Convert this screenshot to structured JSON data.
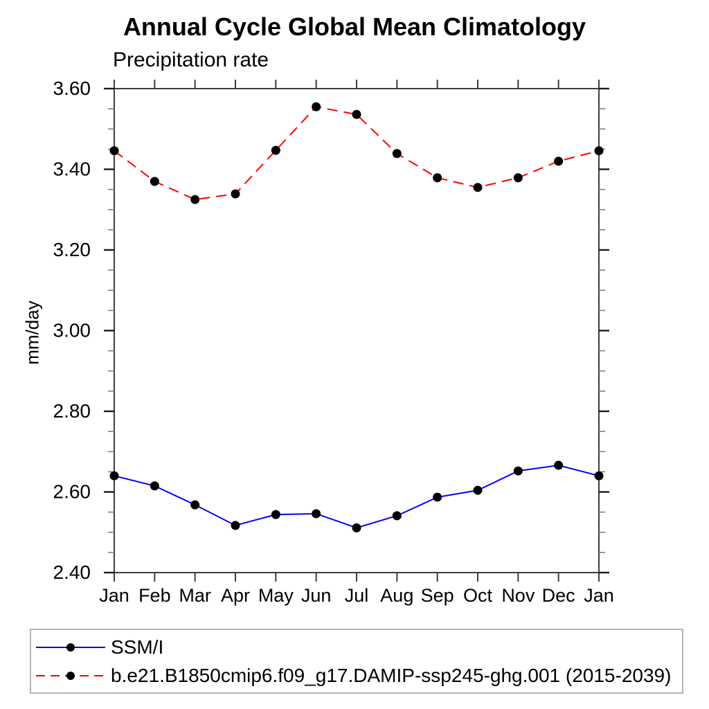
{
  "title": "Annual Cycle Global Mean Climatology",
  "subtitle": "Precipitation rate",
  "ylabel": "mm/day",
  "chart_data": {
    "type": "line",
    "title": "Annual Cycle Global Mean Climatology",
    "subtitle": "Precipitation rate",
    "xlabel": "",
    "ylabel": "mm/day",
    "categories": [
      "Jan",
      "Feb",
      "Mar",
      "Apr",
      "May",
      "Jun",
      "Jul",
      "Aug",
      "Sep",
      "Oct",
      "Nov",
      "Dec",
      "Jan"
    ],
    "ylim": [
      2.4,
      3.6
    ],
    "y_tick_labels": [
      "3.60",
      "3.40",
      "3.20",
      "3.00",
      "2.80",
      "2.60",
      "2.40"
    ],
    "y_minor_step": 0.05,
    "grid": false,
    "legend_position": "bottom-left-box",
    "series": [
      {
        "name": "SSM/I",
        "color": "#0000ff",
        "line_style": "solid",
        "marker": "filled-black-circle",
        "values": [
          2.64,
          2.615,
          2.568,
          2.517,
          2.544,
          2.546,
          2.511,
          2.541,
          2.587,
          2.604,
          2.652,
          2.666,
          2.64
        ]
      },
      {
        "name": "b.e21.B1850cmip6.f09_g17.DAMIP-ssp245-ghg.001 (2015-2039)",
        "color": "#ff0000",
        "line_style": "dashed",
        "marker": "filled-black-circle",
        "values": [
          3.446,
          3.37,
          3.325,
          3.339,
          3.447,
          3.555,
          3.536,
          3.439,
          3.379,
          3.355,
          3.379,
          3.42,
          3.446
        ]
      }
    ]
  },
  "legend": {
    "entries": [
      {
        "label": "SSM/I"
      },
      {
        "label": "b.e21.B1850cmip6.f09_g17.DAMIP-ssp245-ghg.001 (2015-2039)"
      }
    ]
  }
}
